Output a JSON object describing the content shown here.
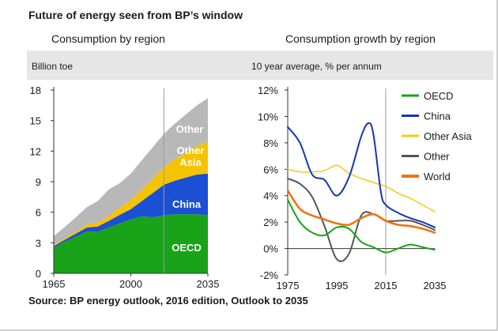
{
  "page": {
    "title": "Future of energy seen from BP’s window",
    "source": "Source: BP energy outlook, 2016 edition, Outlook to 2035"
  },
  "colors": {
    "oecd": "#19a319",
    "china": "#1b4fd4",
    "other_asia": "#f5c400",
    "other": "#b8b8b8",
    "china_line": "#1535b8",
    "other_asia_line": "#f2cc1b",
    "other_line": "#555555",
    "world_line": "#f0740f"
  },
  "chart_data": [
    {
      "type": "area",
      "title": "Consumption by region",
      "ylabel": "Billion toe",
      "stacked": true,
      "ylim": [
        0,
        18
      ],
      "yticks": [
        "0",
        "3",
        "6",
        "9",
        "12",
        "15",
        "18"
      ],
      "xlim": [
        1965,
        2035
      ],
      "xticks": [
        "1965",
        "2000",
        "2035"
      ],
      "forecast_divider_x": 2015,
      "x": [
        1965,
        1970,
        1975,
        1980,
        1985,
        1990,
        1995,
        2000,
        2005,
        2010,
        2015,
        2020,
        2025,
        2030,
        2035
      ],
      "series": [
        {
          "name": "OECD",
          "values": [
            2.5,
            3.1,
            3.6,
            4.1,
            4.1,
            4.5,
            4.9,
            5.3,
            5.6,
            5.5,
            5.7,
            5.8,
            5.8,
            5.8,
            5.7
          ]
        },
        {
          "name": "China",
          "values": [
            0.15,
            0.2,
            0.3,
            0.4,
            0.5,
            0.65,
            0.85,
            1.0,
            1.5,
            2.4,
            3.0,
            3.3,
            3.6,
            3.9,
            4.1
          ]
        },
        {
          "name": "Other Asia",
          "values": [
            0.1,
            0.15,
            0.2,
            0.3,
            0.4,
            0.5,
            0.7,
            0.9,
            1.1,
            1.4,
            1.7,
            2.1,
            2.4,
            2.8,
            3.1
          ]
        },
        {
          "name": "Other",
          "values": [
            0.9,
            1.1,
            1.4,
            1.7,
            2.1,
            2.6,
            2.4,
            2.6,
            2.9,
            3.1,
            3.3,
            3.5,
            3.8,
            4.0,
            4.3
          ]
        }
      ],
      "area_labels": [
        "Other",
        "Other Asia",
        "China",
        "OECD"
      ],
      "grid": false,
      "legend": "none"
    },
    {
      "type": "line",
      "title": "Consumption growth by region",
      "ylabel": "10 year average, % per annum",
      "ylim": [
        -2,
        12
      ],
      "yticks": [
        "-2%",
        "0%",
        "2%",
        "4%",
        "6%",
        "8%",
        "10%",
        "12%"
      ],
      "xlim": [
        1975,
        2035
      ],
      "xticks": [
        "1975",
        "1995",
        "2015",
        "2035"
      ],
      "forecast_divider_x": 2015,
      "series": [
        {
          "name": "OECD",
          "x": [
            1975,
            1980,
            1985,
            1990,
            1995,
            2000,
            2005,
            2010,
            2015,
            2020,
            2025,
            2030,
            2035
          ],
          "values": [
            3.7,
            2.0,
            1.2,
            1.0,
            1.6,
            1.5,
            0.5,
            0.1,
            -0.3,
            0.0,
            0.3,
            0.1,
            -0.1
          ]
        },
        {
          "name": "China",
          "x": [
            1975,
            1980,
            1985,
            1990,
            1995,
            2000,
            2005,
            2008,
            2010,
            2013,
            2015,
            2020,
            2025,
            2030,
            2035
          ],
          "values": [
            9.2,
            8.0,
            5.6,
            5.2,
            4.0,
            5.4,
            8.5,
            9.5,
            8.6,
            4.3,
            3.3,
            2.7,
            2.3,
            2.0,
            1.6
          ]
        },
        {
          "name": "Other Asia",
          "x": [
            1975,
            1980,
            1985,
            1990,
            1995,
            2000,
            2005,
            2010,
            2015,
            2020,
            2025,
            2030,
            2035
          ],
          "values": [
            6.0,
            5.8,
            5.8,
            5.9,
            6.3,
            5.7,
            5.3,
            5.0,
            4.7,
            4.2,
            3.8,
            3.3,
            2.8
          ]
        },
        {
          "name": "Other",
          "x": [
            1975,
            1980,
            1985,
            1990,
            1995,
            2000,
            2005,
            2010,
            2015,
            2020,
            2025,
            2030,
            2035
          ],
          "values": [
            5.3,
            4.9,
            3.9,
            1.7,
            -0.8,
            -0.4,
            2.5,
            2.6,
            2.1,
            2.1,
            2.1,
            1.8,
            1.4
          ]
        },
        {
          "name": "World",
          "x": [
            1975,
            1980,
            1985,
            1990,
            1995,
            2000,
            2005,
            2010,
            2015,
            2020,
            2025,
            2030,
            2035
          ],
          "values": [
            4.4,
            3.0,
            2.5,
            2.2,
            1.9,
            1.8,
            2.3,
            2.6,
            2.1,
            1.8,
            1.7,
            1.5,
            1.2
          ]
        }
      ],
      "grid": false,
      "legend": "right"
    }
  ]
}
